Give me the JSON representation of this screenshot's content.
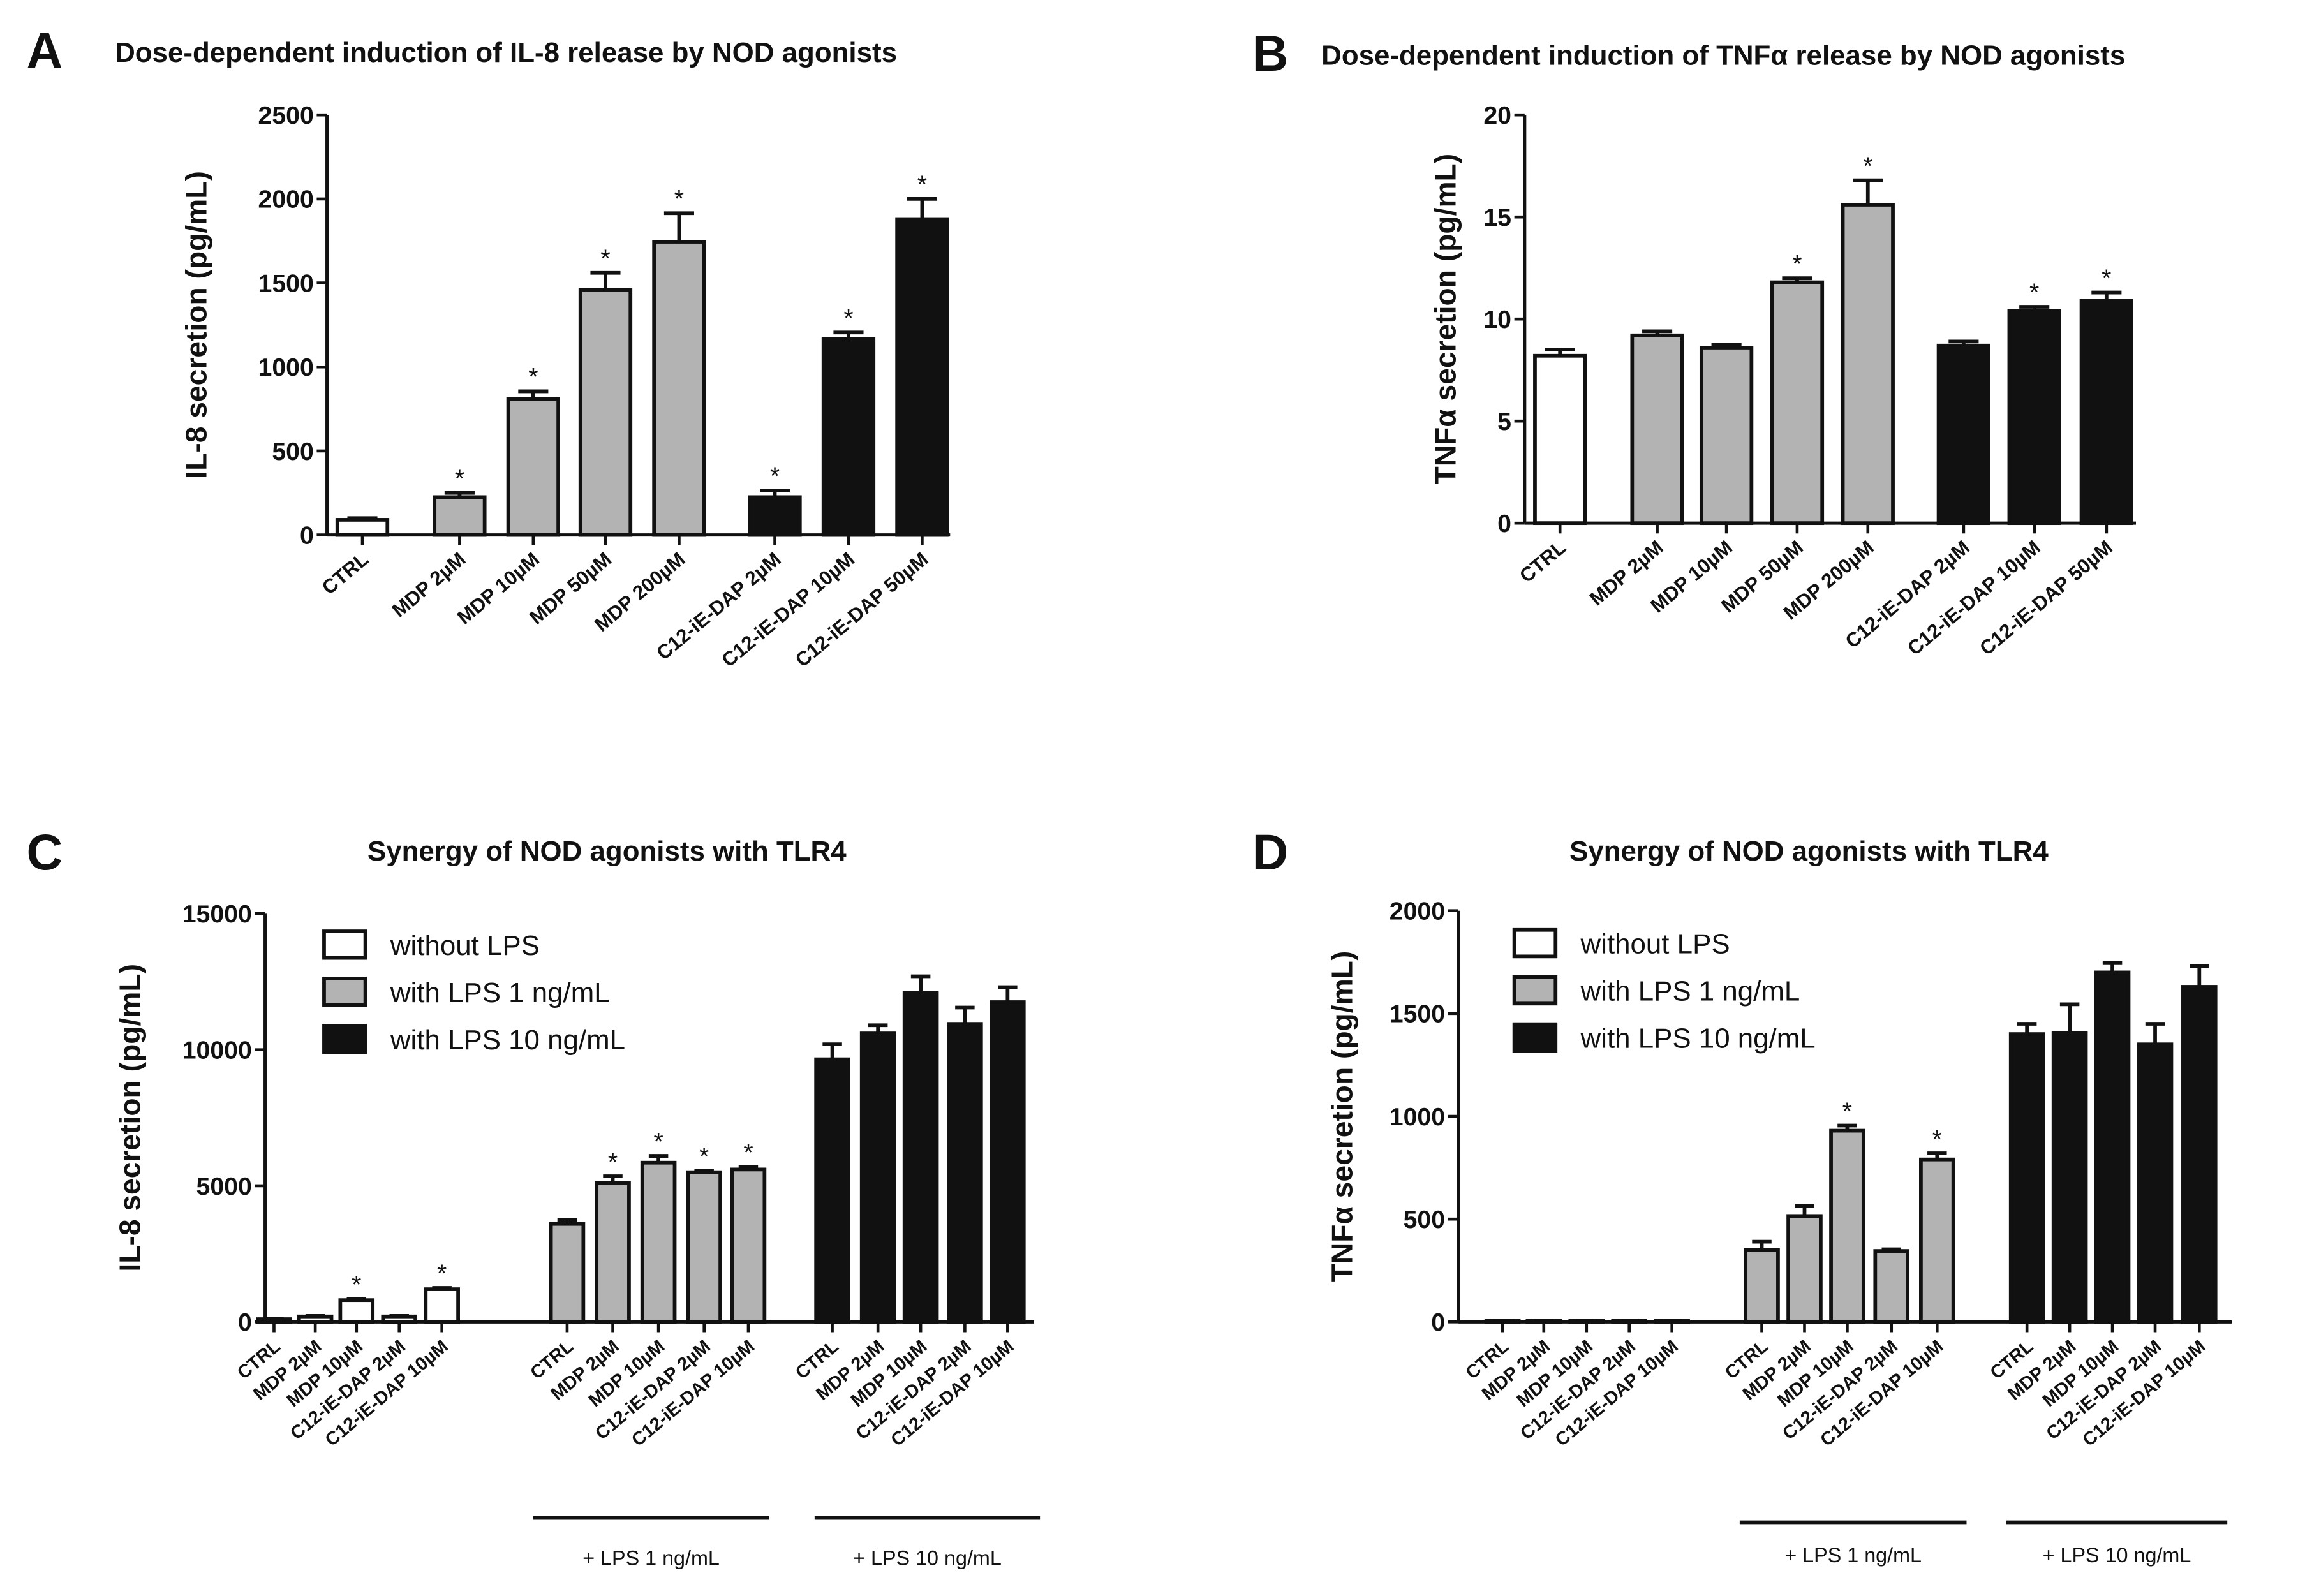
{
  "colors": {
    "white": "#ffffff",
    "gray": "#b3b3b3",
    "black": "#111111"
  },
  "chart_data": [
    {
      "panel": "A",
      "type": "bar",
      "title": "Dose-dependent induction of IL-8 release by NOD agonists",
      "xlabel": "",
      "ylabel": "IL-8 secretion (pg/mL)",
      "ylim": [
        0,
        2500
      ],
      "yticks": [
        "0",
        "500",
        "1000",
        "1500",
        "2000",
        "2500"
      ],
      "categories": [
        "CTRL",
        "MDP 2µM",
        "MDP 10µM",
        "MDP 50µM",
        "MDP 200µM",
        "C12-iE-DAP 2µM",
        "C12-iE-DAP 10µM",
        "C12-iE-DAP 50µM"
      ],
      "values": [
        90,
        225,
        810,
        1460,
        1745,
        225,
        1165,
        1880
      ],
      "errors": [
        10,
        25,
        45,
        100,
        170,
        40,
        40,
        120
      ],
      "significant": [
        false,
        true,
        true,
        true,
        true,
        true,
        true,
        true
      ],
      "fill": [
        "white",
        "gray",
        "gray",
        "gray",
        "gray",
        "black",
        "black",
        "black"
      ],
      "star": "*"
    },
    {
      "panel": "B",
      "type": "bar",
      "title": "Dose-dependent induction of TNFα release by NOD agonists",
      "xlabel": "",
      "ylabel": "TNFα secretion (pg/mL)",
      "ylim": [
        0,
        20
      ],
      "yticks": [
        "0",
        "5",
        "10",
        "15",
        "20"
      ],
      "categories": [
        "CTRL",
        "MDP 2µM",
        "MDP 10µM",
        "MDP 50µM",
        "MDP 200µM",
        "C12-iE-DAP 2µM",
        "C12-iE-DAP 10µM",
        "C12-iE-DAP 50µM"
      ],
      "values": [
        8.2,
        9.2,
        8.6,
        11.8,
        15.6,
        8.7,
        10.4,
        10.9
      ],
      "errors": [
        0.3,
        0.2,
        0.15,
        0.2,
        1.2,
        0.2,
        0.2,
        0.4
      ],
      "significant": [
        false,
        false,
        false,
        true,
        true,
        false,
        true,
        true
      ],
      "fill": [
        "white",
        "gray",
        "gray",
        "gray",
        "gray",
        "black",
        "black",
        "black"
      ],
      "star": "*"
    },
    {
      "panel": "C",
      "type": "bar",
      "title": "Synergy of NOD agonists with TLR4",
      "xlabel": "",
      "ylabel": "IL-8 secretion (pg/mL)",
      "ylim": [
        0,
        15000
      ],
      "yticks": [
        "0",
        "5000",
        "10000",
        "15000"
      ],
      "categories": [
        "CTRL",
        "MDP 2µM",
        "MDP 10µM",
        "C12-iE-DAP 2µM",
        "C12-iE-DAP 10µM"
      ],
      "legend_position": "top-left",
      "series": [
        {
          "name": "without LPS",
          "fill": "white",
          "values": [
            100,
            200,
            800,
            200,
            1200
          ],
          "errors": [
            10,
            20,
            40,
            20,
            50
          ],
          "significant": [
            false,
            false,
            true,
            false,
            true
          ]
        },
        {
          "name": "with LPS 1 ng/mL",
          "fill": "gray",
          "values": [
            3600,
            5100,
            5850,
            5500,
            5600
          ],
          "errors": [
            150,
            250,
            250,
            60,
            100
          ],
          "significant": [
            false,
            true,
            true,
            true,
            true
          ]
        },
        {
          "name": "with LPS 10 ng/mL",
          "fill": "black",
          "values": [
            9650,
            10600,
            12100,
            10950,
            11750
          ],
          "errors": [
            550,
            300,
            600,
            600,
            550
          ],
          "significant": [
            false,
            false,
            false,
            false,
            false
          ]
        }
      ],
      "group_labels": [
        "+ LPS 1 ng/mL",
        "+ LPS 10 ng/mL"
      ],
      "star": "*"
    },
    {
      "panel": "D",
      "type": "bar",
      "title": "Synergy of NOD agonists with TLR4",
      "xlabel": "",
      "ylabel": "TNFα secretion (pg/mL)",
      "ylim": [
        0,
        2000
      ],
      "yticks": [
        "0",
        "500",
        "1000",
        "1500",
        "2000"
      ],
      "categories": [
        "CTRL",
        "MDP 2µM",
        "MDP 10µM",
        "C12-iE-DAP 2µM",
        "C12-iE-DAP 10µM"
      ],
      "legend_position": "top-left",
      "series": [
        {
          "name": "without LPS",
          "fill": "white",
          "values": [
            5,
            5,
            5,
            5,
            5
          ],
          "errors": [
            0,
            0,
            0,
            0,
            0
          ],
          "significant": [
            false,
            false,
            false,
            false,
            false
          ]
        },
        {
          "name": "with LPS 1 ng/mL",
          "fill": "gray",
          "values": [
            350,
            515,
            930,
            345,
            790
          ],
          "errors": [
            40,
            50,
            25,
            8,
            30
          ],
          "significant": [
            false,
            false,
            true,
            false,
            true
          ]
        },
        {
          "name": "with LPS 10 ng/mL",
          "fill": "black",
          "values": [
            1400,
            1405,
            1700,
            1350,
            1630
          ],
          "errors": [
            50,
            140,
            45,
            100,
            100
          ],
          "significant": [
            false,
            false,
            false,
            false,
            false
          ]
        }
      ],
      "group_labels": [
        "+ LPS 1 ng/mL",
        "+ LPS 10 ng/mL"
      ],
      "star": "*"
    }
  ]
}
